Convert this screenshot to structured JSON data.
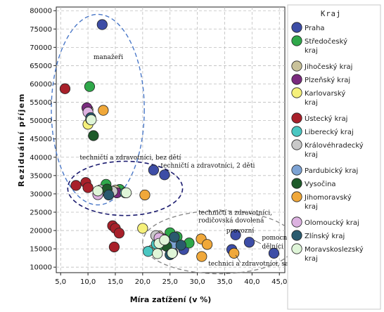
{
  "chart_data": {
    "type": "scatter",
    "title": "",
    "xlabel": "Míra zatížení (v %)",
    "ylabel": "Reziduální příjem",
    "xlim": [
      4.2,
      46.0
    ],
    "ylim": [
      8500,
      81000
    ],
    "x_ticks": [
      "5,0",
      "10,0",
      "15,0",
      "20,0",
      "25,0",
      "30,0",
      "35,0",
      "40,0",
      "45,0"
    ],
    "y_ticks": [
      "10000",
      "15000",
      "20000",
      "25000",
      "30000",
      "35000",
      "40000",
      "45000",
      "50000",
      "55000",
      "60000",
      "65000",
      "70000",
      "75000",
      "80000"
    ],
    "grid": true,
    "legend_title": "Kraj",
    "legend_position": "right",
    "series": [
      {
        "name": "Praha",
        "color": "#3d4da6",
        "points": [
          [
            12.6,
            76200
          ],
          [
            22.0,
            36500
          ],
          [
            24.0,
            35200
          ],
          [
            37.0,
            18800
          ],
          [
            39.5,
            16800
          ],
          [
            36.3,
            14800
          ],
          [
            44.0,
            13800
          ],
          [
            25.5,
            14000
          ],
          [
            27.5,
            14800
          ]
        ]
      },
      {
        "name": "Středočeský kraj",
        "color": "#2fa84a",
        "points": [
          [
            10.3,
            59300
          ],
          [
            13.3,
            32600
          ],
          [
            15.8,
            31200
          ],
          [
            25.0,
            19400
          ],
          [
            26.3,
            18300
          ],
          [
            28.5,
            16600
          ],
          [
            23.3,
            16100
          ]
        ]
      },
      {
        "name": "Jihočeský kraj",
        "color": "#c9c29a",
        "points": [
          [
            10.0,
            53000
          ],
          [
            15.0,
            31000
          ],
          [
            23.0,
            18500
          ],
          [
            24.2,
            17000
          ],
          [
            21.8,
            14700
          ]
        ]
      },
      {
        "name": "Plzeňský kraj",
        "color": "#7a2a7e",
        "points": [
          [
            9.8,
            53500
          ],
          [
            15.3,
            30300
          ],
          [
            23.8,
            17700
          ]
        ]
      },
      {
        "name": "Karlovarský kraj",
        "color": "#f5f07a",
        "points": [
          [
            10.0,
            49000
          ],
          [
            20.0,
            20600
          ],
          [
            14.2,
            30600
          ]
        ]
      },
      {
        "name": "Ústecký kraj",
        "color": "#a8202a",
        "points": [
          [
            5.8,
            58700
          ],
          [
            7.8,
            32300
          ],
          [
            9.6,
            33100
          ],
          [
            14.5,
            21300
          ],
          [
            15.0,
            20600
          ],
          [
            15.7,
            19300
          ],
          [
            14.8,
            15500
          ],
          [
            10.0,
            31700
          ]
        ]
      },
      {
        "name": "Liberecký kraj",
        "color": "#4ac7c2",
        "points": [
          [
            10.5,
            50300
          ],
          [
            12.3,
            30600
          ],
          [
            21.0,
            14300
          ],
          [
            22.5,
            16300
          ],
          [
            23.0,
            17000
          ],
          [
            16.8,
            30300
          ]
        ]
      },
      {
        "name": "Královéhradecký kraj",
        "color": "#c8c8c8",
        "points": [
          [
            12.3,
            31100
          ],
          [
            14.5,
            30700
          ],
          [
            22.4,
            18600
          ],
          [
            24.6,
            15700
          ]
        ]
      },
      {
        "name": "Pardubický kraj",
        "color": "#7da3d4",
        "points": [
          [
            24.8,
            16900
          ],
          [
            25.4,
            16100
          ]
        ]
      },
      {
        "name": "Vysočina",
        "color": "#1e5a2a",
        "points": [
          [
            11.0,
            45900
          ],
          [
            13.5,
            31300
          ],
          [
            24.4,
            15700
          ]
        ]
      },
      {
        "name": "Jihomoravský kraj",
        "color": "#f0a83a",
        "points": [
          [
            12.8,
            52800
          ],
          [
            20.4,
            29700
          ],
          [
            30.7,
            17700
          ],
          [
            31.8,
            16200
          ],
          [
            30.8,
            12900
          ],
          [
            36.7,
            13800
          ]
        ]
      },
      {
        "name": "Olomoucký kraj",
        "color": "#dcb2e0",
        "points": [
          [
            10.0,
            52300
          ],
          [
            11.8,
            29800
          ],
          [
            23.0,
            18000
          ]
        ]
      },
      {
        "name": "Zlínský kraj",
        "color": "#2a5a6e",
        "points": [
          [
            10.5,
            50800
          ],
          [
            13.8,
            29700
          ],
          [
            25.0,
            13400
          ],
          [
            27.0,
            16000
          ],
          [
            25.8,
            18200
          ]
        ]
      },
      {
        "name": "Moravskoslezský kraj",
        "color": "#dff5d8",
        "points": [
          [
            10.6,
            50200
          ],
          [
            11.8,
            30800
          ],
          [
            17.0,
            30300
          ],
          [
            23.0,
            16500
          ],
          [
            24.0,
            17400
          ],
          [
            22.7,
            13700
          ],
          [
            25.4,
            13800
          ]
        ]
      }
    ],
    "annotations": [
      {
        "text": "manažeři",
        "x": 11.0,
        "y": 66800,
        "anchor": "start"
      },
      {
        "text": "techničtí a zdravotníci, bez dětí",
        "x": 8.5,
        "y": 39400,
        "anchor": "start"
      },
      {
        "text": "techničtí a zdravotníci, 2 děti",
        "x": 23.3,
        "y": 37200,
        "anchor": "start"
      },
      {
        "text": "techničtí a zdravotníci,",
        "x": 30.2,
        "y": 24300,
        "anchor": "start"
      },
      {
        "text": "rodičovská dovolená",
        "x": 30.2,
        "y": 22200,
        "anchor": "start"
      },
      {
        "text": "provozní",
        "x": 35.3,
        "y": 19400,
        "anchor": "start"
      },
      {
        "text": "pomocní",
        "x": 41.8,
        "y": 17500,
        "anchor": "start"
      },
      {
        "text": "dělníci",
        "x": 41.8,
        "y": 15100,
        "anchor": "start"
      },
      {
        "text": "technici a zdravotníci, samoživitel",
        "x": 32.0,
        "y": 10400,
        "anchor": "start"
      }
    ]
  }
}
